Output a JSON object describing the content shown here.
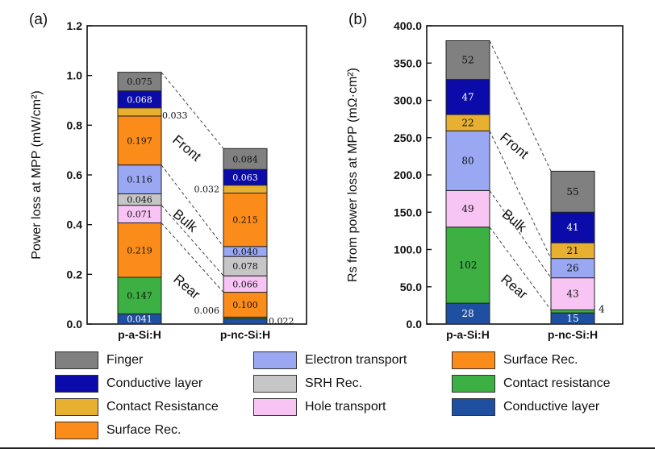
{
  "figure": {
    "panels": [
      "(a)",
      "(b)"
    ],
    "region_labels": [
      "Front",
      "Bulk",
      "Rear"
    ]
  },
  "colors": {
    "finger": "#808080",
    "conductive_front": "#0b0baa",
    "contact_res_front": "#e8b030",
    "surface_front": "#fb8c1a",
    "electron": "#9aa8f4",
    "srh": "#c6c6c6",
    "hole": "#f8c4f4",
    "surface_rear": "#fb8c1a",
    "contact_rear": "#3cb043",
    "conductive_rear": "#1f4fa0"
  },
  "legend": [
    {
      "key": "finger",
      "label": "Finger"
    },
    {
      "key": "conductive_front",
      "label": "Conductive layer"
    },
    {
      "key": "contact_res_front",
      "label": "Contact Resistance"
    },
    {
      "key": "surface_front",
      "label": "Surface  Rec."
    },
    {
      "key": "electron",
      "label": "Electron transport"
    },
    {
      "key": "srh",
      "label": "SRH Rec."
    },
    {
      "key": "hole",
      "label": "Hole transport"
    },
    {
      "key": "surface_rear",
      "label": "Surface Rec."
    },
    {
      "key": "contact_rear",
      "label": "Contact resistance"
    },
    {
      "key": "conductive_rear",
      "label": "Conductive layer"
    }
  ],
  "chart_data": [
    {
      "type": "bar",
      "stacked": true,
      "panel": "(a)",
      "ylabel": "Power loss at MPP (mW/cm²)",
      "ylim": [
        0,
        1.2
      ],
      "yticks": [
        "0.0",
        "0.2",
        "0.4",
        "0.6",
        "0.8",
        "1.0",
        "1.2"
      ],
      "categories": [
        "p-a-Si:H",
        "p-nc-Si:H"
      ],
      "series": [
        {
          "key": "conductive_rear",
          "values": [
            0.041,
            0.022
          ],
          "labels": [
            "0.041",
            "0.022"
          ]
        },
        {
          "key": "contact_rear",
          "values": [
            0.147,
            0.006
          ],
          "labels": [
            "0.147",
            "0.006"
          ]
        },
        {
          "key": "surface_rear",
          "values": [
            0.219,
            0.1
          ],
          "labels": [
            "0.219",
            "0.100"
          ]
        },
        {
          "key": "hole",
          "values": [
            0.071,
            0.066
          ],
          "labels": [
            "0.071",
            "0.066"
          ]
        },
        {
          "key": "srh",
          "values": [
            0.046,
            0.078
          ],
          "labels": [
            "0.046",
            "0.078"
          ]
        },
        {
          "key": "electron",
          "values": [
            0.116,
            0.04
          ],
          "labels": [
            "0.116",
            "0.040"
          ]
        },
        {
          "key": "surface_front",
          "values": [
            0.197,
            0.215
          ],
          "labels": [
            "0.197",
            "0.215"
          ]
        },
        {
          "key": "contact_res_front",
          "values": [
            0.033,
            0.032
          ],
          "labels": [
            "0.033",
            "0.032"
          ]
        },
        {
          "key": "conductive_front",
          "values": [
            0.068,
            0.063
          ],
          "labels": [
            "0.068",
            "0.063"
          ]
        },
        {
          "key": "finger",
          "values": [
            0.075,
            0.084
          ],
          "labels": [
            "0.075",
            "0.084"
          ]
        }
      ]
    },
    {
      "type": "bar",
      "stacked": true,
      "panel": "(b)",
      "ylabel": "Rs from power loss at MPP (mΩ·cm²)",
      "ylim": [
        0,
        400
      ],
      "yticks": [
        "0.0",
        "50.0",
        "100.0",
        "150.0",
        "200.0",
        "250.0",
        "300.0",
        "350.0",
        "400.0"
      ],
      "categories": [
        "p-a-Si:H",
        "p-nc-Si:H"
      ],
      "series": [
        {
          "key": "conductive_rear",
          "values": [
            28,
            15
          ],
          "labels": [
            "28",
            "15"
          ]
        },
        {
          "key": "contact_rear",
          "values": [
            102,
            4
          ],
          "labels": [
            "102",
            "4"
          ]
        },
        {
          "key": "hole",
          "values": [
            49,
            43
          ],
          "labels": [
            "49",
            "43"
          ]
        },
        {
          "key": "electron",
          "values": [
            80,
            26
          ],
          "labels": [
            "80",
            "26"
          ]
        },
        {
          "key": "contact_res_front",
          "values": [
            22,
            21
          ],
          "labels": [
            "22",
            "21"
          ]
        },
        {
          "key": "conductive_front",
          "values": [
            47,
            41
          ],
          "labels": [
            "47",
            "41"
          ]
        },
        {
          "key": "finger",
          "values": [
            52,
            55
          ],
          "labels": [
            "52",
            "55"
          ]
        }
      ]
    }
  ]
}
